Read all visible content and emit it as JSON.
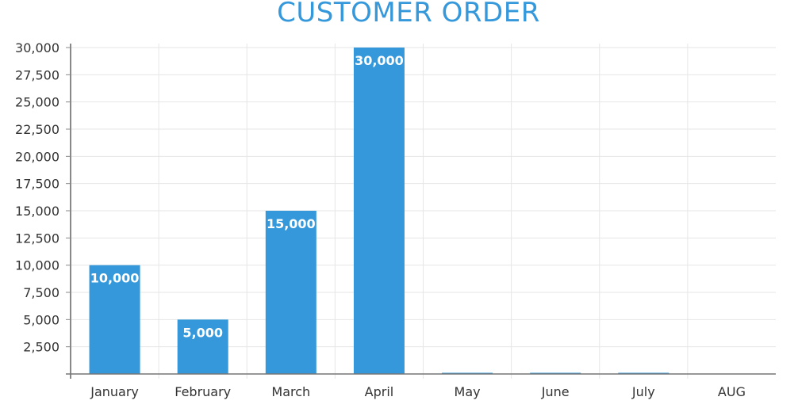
{
  "chart_data": {
    "type": "bar",
    "title": "CUSTOMER ORDER",
    "categories": [
      "January",
      "February",
      "March",
      "April",
      "May",
      "June",
      "July",
      "AUG"
    ],
    "values": [
      10000,
      5000,
      15000,
      30000,
      0,
      0,
      0,
      null
    ],
    "data_labels": [
      "10,000",
      "5,000",
      "15,000",
      "30,000",
      "",
      "",
      "",
      ""
    ],
    "ylim": [
      0,
      30000
    ],
    "yticks": [
      "2,500",
      "5,000",
      "7,500",
      "10,000",
      "12,500",
      "15,000",
      "17,500",
      "20,000",
      "22,500",
      "25,000",
      "27,500",
      "30,000"
    ],
    "ytick_values": [
      2500,
      5000,
      7500,
      10000,
      12500,
      15000,
      17500,
      20000,
      22500,
      25000,
      27500,
      30000
    ],
    "grid": true,
    "xlabel": "",
    "ylabel": "",
    "bar_color": "#3498db"
  }
}
